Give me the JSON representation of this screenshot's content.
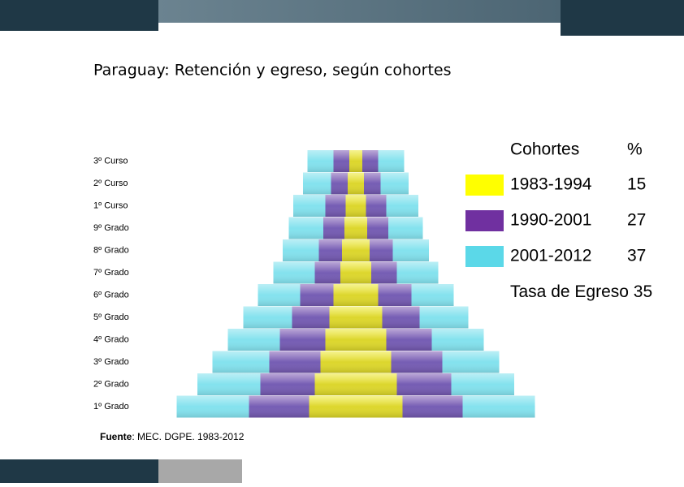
{
  "chart_data": {
    "type": "centered-bar",
    "title": "Paraguay: Retención y egreso, según cohortes",
    "categories": [
      "3º Curso",
      "2º Curso",
      "1º Curso",
      "9º Grado",
      "8º Grado",
      "7º Grado",
      "6º Grado",
      "5º Grado",
      "4º Grado",
      "3º Grado",
      "2º Grado",
      "1º Grado"
    ],
    "legend_title": "Cohortes",
    "legend_value_header": "%",
    "series": [
      {
        "name": "1983-1994",
        "color": "#ffff00",
        "rate": 15,
        "values": [
          16,
          20,
          25,
          28,
          34,
          38,
          55,
          65,
          75,
          87,
          101,
          115
        ]
      },
      {
        "name": "1990-2001",
        "color": "#7030a0",
        "rate": 27,
        "values": [
          55,
          61,
          75,
          80,
          91,
          101,
          137,
          157,
          187,
          213,
          235,
          263
        ]
      },
      {
        "name": "2001-2012",
        "color": "#5bd8e8",
        "rate": 37,
        "values": [
          119,
          130,
          154,
          165,
          180,
          203,
          241,
          277,
          315,
          353,
          390,
          441
        ]
      }
    ],
    "summary_label": "Tasa de Egreso",
    "summary_value": 35,
    "source_label": "Fuente",
    "source": ": MEC. DGPE. 1983-2012"
  }
}
